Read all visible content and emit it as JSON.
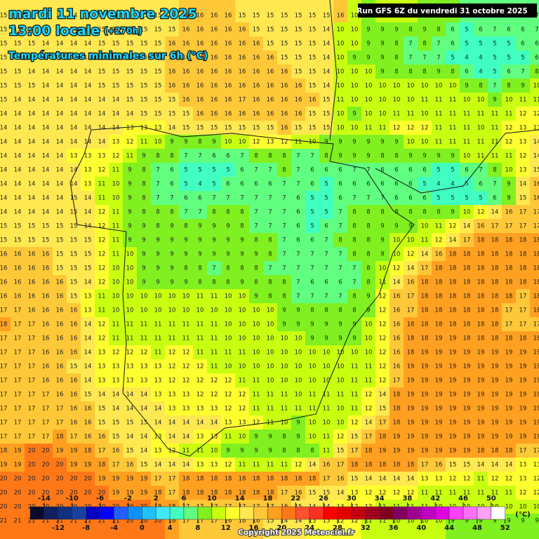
{
  "header": {
    "date": "mardi 11 novembre 2025",
    "time": "13:00 locale",
    "lead": "(+270h)",
    "subtitle": "Températures minimales sur 6h (°C)",
    "run": "Run GFS 6Z du vendredi 31 octobre 2025"
  },
  "grid": {
    "rows": [
      [
        15,
        15,
        15,
        14,
        14,
        14,
        14,
        14,
        15,
        15,
        15,
        15,
        15,
        16,
        16,
        16,
        16,
        15,
        15,
        15,
        15,
        15,
        15,
        15,
        16,
        10,
        9,
        10,
        10,
        10,
        9,
        9,
        8,
        7,
        7,
        6,
        6,
        7,
        7
      ],
      [
        15,
        15,
        15,
        14,
        14,
        14,
        14,
        15,
        15,
        15,
        15,
        15,
        15,
        16,
        16,
        16,
        16,
        16,
        15,
        15,
        15,
        15,
        15,
        14,
        10,
        10,
        9,
        9,
        9,
        8,
        9,
        8,
        6,
        5,
        6,
        7,
        6,
        6,
        7
      ],
      [
        15,
        15,
        15,
        14,
        14,
        14,
        14,
        15,
        15,
        15,
        15,
        15,
        16,
        16,
        16,
        16,
        16,
        16,
        16,
        15,
        15,
        15,
        15,
        14,
        10,
        10,
        9,
        9,
        8,
        7,
        8,
        7,
        6,
        5,
        5,
        5,
        5,
        6,
        6
      ],
      [
        15,
        15,
        15,
        14,
        14,
        14,
        14,
        15,
        15,
        15,
        15,
        15,
        16,
        16,
        16,
        16,
        16,
        16,
        16,
        16,
        15,
        15,
        15,
        14,
        10,
        9,
        9,
        9,
        8,
        7,
        7,
        7,
        5,
        4,
        4,
        5,
        5,
        5,
        6
      ],
      [
        15,
        15,
        14,
        14,
        14,
        14,
        14,
        15,
        15,
        15,
        15,
        15,
        16,
        16,
        16,
        16,
        16,
        16,
        16,
        16,
        16,
        15,
        15,
        14,
        10,
        10,
        10,
        9,
        8,
        8,
        8,
        9,
        8,
        6,
        4,
        5,
        6,
        7,
        8
      ],
      [
        15,
        15,
        15,
        14,
        14,
        14,
        14,
        15,
        15,
        15,
        15,
        15,
        16,
        16,
        16,
        16,
        16,
        16,
        16,
        16,
        16,
        16,
        15,
        14,
        10,
        10,
        10,
        10,
        10,
        10,
        10,
        10,
        10,
        9,
        8,
        7,
        8,
        9,
        10
      ],
      [
        15,
        14,
        14,
        14,
        14,
        14,
        14,
        14,
        14,
        15,
        15,
        15,
        15,
        16,
        16,
        16,
        16,
        17,
        16,
        16,
        16,
        16,
        16,
        15,
        11,
        10,
        10,
        10,
        10,
        10,
        11,
        11,
        11,
        10,
        10,
        9,
        10,
        11,
        11
      ],
      [
        14,
        14,
        14,
        14,
        14,
        14,
        14,
        14,
        14,
        14,
        15,
        15,
        15,
        15,
        16,
        16,
        16,
        16,
        16,
        16,
        16,
        16,
        15,
        15,
        10,
        9,
        10,
        10,
        11,
        11,
        10,
        11,
        11,
        11,
        11,
        11,
        11,
        12,
        12
      ],
      [
        14,
        14,
        14,
        14,
        14,
        14,
        14,
        14,
        14,
        13,
        13,
        13,
        14,
        15,
        15,
        15,
        15,
        15,
        15,
        15,
        16,
        15,
        15,
        15,
        10,
        10,
        11,
        11,
        12,
        12,
        12,
        11,
        11,
        11,
        10,
        11,
        12,
        13,
        13
      ],
      [
        14,
        14,
        14,
        14,
        14,
        14,
        14,
        14,
        13,
        12,
        11,
        10,
        9,
        9,
        8,
        9,
        10,
        10,
        12,
        13,
        12,
        11,
        10,
        9,
        9,
        9,
        9,
        9,
        9,
        10,
        10,
        11,
        11,
        11,
        11,
        11,
        12,
        13,
        14
      ],
      [
        14,
        14,
        14,
        14,
        14,
        13,
        13,
        13,
        12,
        11,
        9,
        8,
        8,
        7,
        7,
        6,
        6,
        7,
        8,
        8,
        8,
        7,
        7,
        8,
        9,
        9,
        9,
        8,
        8,
        9,
        9,
        9,
        9,
        10,
        11,
        11,
        11,
        12,
        14
      ],
      [
        14,
        14,
        14,
        14,
        14,
        14,
        13,
        12,
        11,
        9,
        8,
        7,
        6,
        5,
        5,
        5,
        5,
        6,
        7,
        7,
        8,
        7,
        6,
        6,
        6,
        7,
        7,
        6,
        6,
        6,
        6,
        5,
        5,
        6,
        7,
        8,
        10,
        13,
        15
      ],
      [
        14,
        14,
        14,
        14,
        14,
        14,
        13,
        11,
        10,
        9,
        8,
        7,
        6,
        5,
        4,
        5,
        6,
        6,
        6,
        6,
        7,
        7,
        6,
        5,
        6,
        6,
        6,
        6,
        6,
        6,
        5,
        4,
        4,
        5,
        6,
        7,
        9,
        14,
        16
      ],
      [
        14,
        14,
        14,
        14,
        14,
        15,
        14,
        11,
        10,
        9,
        8,
        7,
        7,
        6,
        6,
        7,
        7,
        7,
        7,
        7,
        7,
        6,
        5,
        5,
        6,
        7,
        7,
        7,
        6,
        6,
        6,
        5,
        5,
        5,
        5,
        6,
        9,
        15,
        16
      ],
      [
        14,
        14,
        14,
        14,
        14,
        15,
        14,
        12,
        11,
        9,
        8,
        8,
        8,
        7,
        7,
        8,
        8,
        8,
        7,
        7,
        7,
        6,
        5,
        5,
        7,
        8,
        8,
        8,
        8,
        8,
        8,
        8,
        9,
        10,
        12,
        14,
        16,
        17,
        17
      ],
      [
        15,
        15,
        15,
        15,
        15,
        15,
        14,
        12,
        11,
        9,
        9,
        8,
        9,
        8,
        9,
        9,
        9,
        8,
        7,
        7,
        7,
        6,
        5,
        6,
        7,
        8,
        8,
        9,
        9,
        9,
        10,
        11,
        12,
        14,
        16,
        17,
        17,
        17,
        17
      ],
      [
        15,
        15,
        15,
        15,
        15,
        15,
        15,
        12,
        11,
        9,
        9,
        9,
        9,
        9,
        9,
        9,
        9,
        9,
        8,
        8,
        7,
        6,
        6,
        7,
        8,
        8,
        8,
        9,
        10,
        10,
        11,
        12,
        14,
        17,
        18,
        18,
        18,
        18,
        18
      ],
      [
        16,
        16,
        16,
        16,
        15,
        15,
        15,
        12,
        11,
        10,
        9,
        9,
        9,
        9,
        9,
        9,
        9,
        9,
        9,
        8,
        7,
        7,
        7,
        7,
        7,
        8,
        8,
        9,
        10,
        12,
        14,
        16,
        18,
        18,
        18,
        18,
        18,
        18,
        18
      ],
      [
        16,
        16,
        16,
        16,
        15,
        15,
        15,
        12,
        10,
        10,
        9,
        9,
        9,
        8,
        8,
        7,
        8,
        8,
        8,
        7,
        7,
        7,
        7,
        7,
        7,
        7,
        8,
        10,
        12,
        14,
        17,
        18,
        18,
        18,
        18,
        18,
        18,
        18,
        18
      ],
      [
        16,
        16,
        16,
        16,
        16,
        15,
        14,
        12,
        10,
        10,
        9,
        9,
        9,
        9,
        8,
        8,
        8,
        9,
        8,
        8,
        8,
        7,
        6,
        6,
        6,
        7,
        8,
        11,
        14,
        16,
        18,
        18,
        18,
        18,
        18,
        18,
        18,
        18,
        18
      ],
      [
        16,
        16,
        16,
        16,
        16,
        15,
        13,
        11,
        10,
        10,
        10,
        10,
        10,
        10,
        11,
        11,
        10,
        10,
        9,
        8,
        8,
        7,
        7,
        7,
        7,
        8,
        9,
        12,
        16,
        17,
        18,
        18,
        18,
        18,
        18,
        18,
        18,
        17,
        18
      ],
      [
        17,
        17,
        16,
        16,
        16,
        16,
        13,
        11,
        10,
        10,
        10,
        10,
        10,
        10,
        10,
        10,
        10,
        10,
        10,
        10,
        9,
        9,
        8,
        8,
        8,
        8,
        9,
        12,
        16,
        17,
        18,
        18,
        18,
        18,
        18,
        18,
        17,
        17,
        18
      ],
      [
        18,
        17,
        17,
        16,
        16,
        16,
        14,
        12,
        11,
        11,
        11,
        11,
        11,
        11,
        11,
        11,
        10,
        10,
        10,
        10,
        9,
        9,
        9,
        9,
        9,
        9,
        10,
        12,
        16,
        18,
        18,
        18,
        18,
        18,
        18,
        18,
        17,
        17,
        17
      ],
      [
        17,
        17,
        17,
        16,
        16,
        16,
        14,
        12,
        11,
        11,
        11,
        11,
        11,
        11,
        11,
        11,
        10,
        10,
        10,
        10,
        10,
        10,
        9,
        9,
        9,
        9,
        10,
        12,
        16,
        18,
        18,
        19,
        19,
        18,
        18,
        18,
        18,
        18,
        18
      ],
      [
        17,
        17,
        17,
        16,
        16,
        16,
        14,
        13,
        12,
        12,
        12,
        11,
        12,
        12,
        11,
        11,
        11,
        11,
        10,
        10,
        10,
        10,
        10,
        10,
        10,
        10,
        10,
        12,
        16,
        18,
        19,
        19,
        19,
        19,
        19,
        19,
        19,
        19,
        19
      ],
      [
        17,
        17,
        17,
        16,
        16,
        15,
        14,
        13,
        13,
        13,
        13,
        13,
        12,
        12,
        12,
        11,
        10,
        10,
        10,
        10,
        10,
        10,
        10,
        10,
        10,
        11,
        11,
        12,
        16,
        19,
        19,
        19,
        19,
        19,
        19,
        19,
        19,
        19,
        19
      ],
      [
        17,
        17,
        17,
        16,
        16,
        16,
        14,
        13,
        13,
        13,
        13,
        13,
        12,
        12,
        12,
        12,
        12,
        11,
        11,
        10,
        10,
        10,
        10,
        10,
        10,
        11,
        11,
        12,
        17,
        19,
        19,
        19,
        19,
        19,
        19,
        19,
        19,
        19,
        19
      ],
      [
        17,
        17,
        17,
        17,
        16,
        16,
        15,
        14,
        14,
        14,
        14,
        13,
        13,
        13,
        12,
        12,
        12,
        12,
        11,
        11,
        11,
        10,
        11,
        11,
        11,
        11,
        12,
        14,
        18,
        19,
        19,
        19,
        19,
        19,
        19,
        19,
        19,
        19,
        19
      ],
      [
        17,
        17,
        17,
        17,
        17,
        16,
        16,
        15,
        14,
        14,
        14,
        14,
        13,
        13,
        13,
        13,
        12,
        12,
        11,
        11,
        11,
        11,
        11,
        11,
        10,
        11,
        12,
        15,
        18,
        19,
        19,
        19,
        19,
        19,
        19,
        19,
        19,
        19,
        19
      ],
      [
        17,
        17,
        17,
        17,
        17,
        16,
        16,
        15,
        15,
        15,
        15,
        14,
        14,
        14,
        14,
        14,
        13,
        13,
        12,
        11,
        10,
        9,
        10,
        10,
        10,
        12,
        14,
        17,
        18,
        19,
        19,
        19,
        19,
        19,
        19,
        19,
        19,
        19,
        19
      ],
      [
        17,
        17,
        17,
        17,
        18,
        17,
        16,
        16,
        15,
        14,
        14,
        13,
        14,
        14,
        13,
        13,
        11,
        10,
        9,
        9,
        8,
        9,
        10,
        11,
        12,
        15,
        17,
        18,
        19,
        19,
        19,
        19,
        19,
        19,
        19,
        19,
        19,
        19,
        19
      ],
      [
        18,
        19,
        20,
        20,
        19,
        19,
        18,
        17,
        16,
        15,
        14,
        13,
        12,
        11,
        11,
        10,
        9,
        9,
        9,
        9,
        8,
        8,
        8,
        11,
        15,
        17,
        18,
        19,
        19,
        19,
        19,
        19,
        19,
        19,
        18,
        18,
        18,
        17,
        17
      ],
      [
        19,
        19,
        20,
        20,
        20,
        19,
        19,
        18,
        17,
        16,
        15,
        14,
        14,
        14,
        13,
        13,
        12,
        11,
        11,
        11,
        11,
        12,
        14,
        16,
        17,
        18,
        18,
        18,
        18,
        18,
        17,
        16,
        15,
        15,
        14,
        14,
        14,
        13,
        13
      ],
      [
        20,
        20,
        20,
        20,
        20,
        20,
        20,
        19,
        19,
        19,
        19,
        17,
        17,
        18,
        18,
        18,
        18,
        18,
        18,
        18,
        18,
        18,
        18,
        17,
        16,
        15,
        14,
        14,
        14,
        14,
        13,
        13,
        12,
        12,
        11,
        12,
        12,
        13,
        12
      ],
      [
        20,
        20,
        20,
        20,
        20,
        20,
        20,
        20,
        19,
        19,
        19,
        18,
        17,
        18,
        18,
        18,
        18,
        18,
        18,
        18,
        17,
        16,
        15,
        15,
        14,
        13,
        12,
        12,
        12,
        12,
        11,
        11,
        11,
        11,
        11,
        11,
        11,
        12,
        12
      ],
      [
        20,
        20,
        20,
        20,
        20,
        20,
        20,
        20,
        20,
        20,
        20,
        19,
        18,
        17,
        17,
        17,
        17,
        17,
        17,
        17,
        16,
        15,
        14,
        14,
        13,
        12,
        12,
        11,
        11,
        11,
        11,
        10,
        10,
        10,
        10,
        10,
        10,
        10,
        10
      ],
      [
        21,
        21,
        21,
        21,
        21,
        21,
        21,
        21,
        21,
        20,
        20,
        20,
        18,
        17,
        17,
        17,
        16,
        16,
        16,
        15,
        14,
        14,
        13,
        13,
        12,
        12,
        11,
        11,
        10,
        10,
        10,
        10,
        9,
        9,
        9,
        9,
        9,
        9,
        9
      ]
    ]
  },
  "legend": {
    "ticks": [
      -14,
      -12,
      -10,
      -8,
      -6,
      -4,
      -2,
      0,
      2,
      4,
      6,
      8,
      10,
      12,
      14,
      16,
      18,
      20,
      22,
      24,
      26,
      28,
      30,
      32,
      34,
      36,
      38,
      40,
      42,
      44,
      46,
      48,
      50,
      52
    ],
    "colors": [
      "#0b0b2e",
      "#102060",
      "#103080",
      "#1840a0",
      "#0000c0",
      "#0000ff",
      "#2060ff",
      "#1090ff",
      "#20c0ff",
      "#40e8ff",
      "#40ffc0",
      "#60ff80",
      "#80f020",
      "#c8ff10",
      "#ffff30",
      "#ffe850",
      "#ffc838",
      "#ffa020",
      "#ff7818",
      "#ff5030",
      "#ff3020",
      "#ff0000",
      "#e00000",
      "#c00010",
      "#a00020",
      "#800020",
      "#800060",
      "#a00090",
      "#c000c0",
      "#e000e0",
      "#ff40ff",
      "#ff70ff",
      "#ffa0ff",
      "#ffffff"
    ],
    "unit": "(°C)"
  },
  "footer": {
    "copyright": "Copyright 2025 Meteociel.fr"
  }
}
